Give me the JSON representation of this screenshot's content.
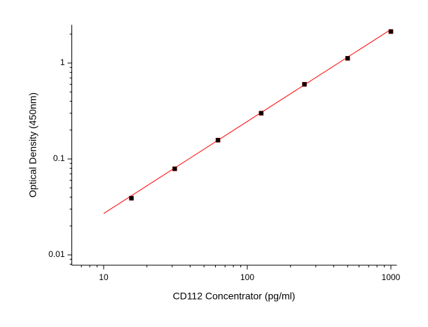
{
  "chart_data": {
    "type": "scatter",
    "x_label": "CD112 Concentrator (pg/ml)",
    "y_label": "Optical Density (450nm)",
    "x": [
      15.6,
      31.25,
      62.5,
      125,
      250,
      500,
      1000
    ],
    "values": [
      0.039,
      0.079,
      0.157,
      0.3,
      0.6,
      1.12,
      2.13
    ],
    "color": "#000000",
    "fit_line": {
      "x": [
        10,
        1000
      ],
      "values": [
        0.027,
        2.24
      ],
      "color": "#ff0000"
    },
    "log_x": true,
    "log_y": true,
    "xlim": [
      6,
      1100
    ],
    "ylim": [
      0.0078,
      2.5
    ],
    "xticks": [
      10,
      100,
      1000
    ],
    "xminorticks": [
      7,
      8,
      9,
      20,
      30,
      40,
      50,
      60,
      70,
      80,
      90,
      200,
      300,
      400,
      500,
      600,
      700,
      800,
      900
    ],
    "yticks": [
      0.01,
      0.1,
      1
    ],
    "yminorticks": [
      0.008,
      0.009,
      0.02,
      0.03,
      0.04,
      0.05,
      0.06,
      0.07,
      0.08,
      0.09,
      0.2,
      0.3,
      0.4,
      0.5,
      0.6,
      0.7,
      0.8,
      0.9,
      2
    ]
  }
}
